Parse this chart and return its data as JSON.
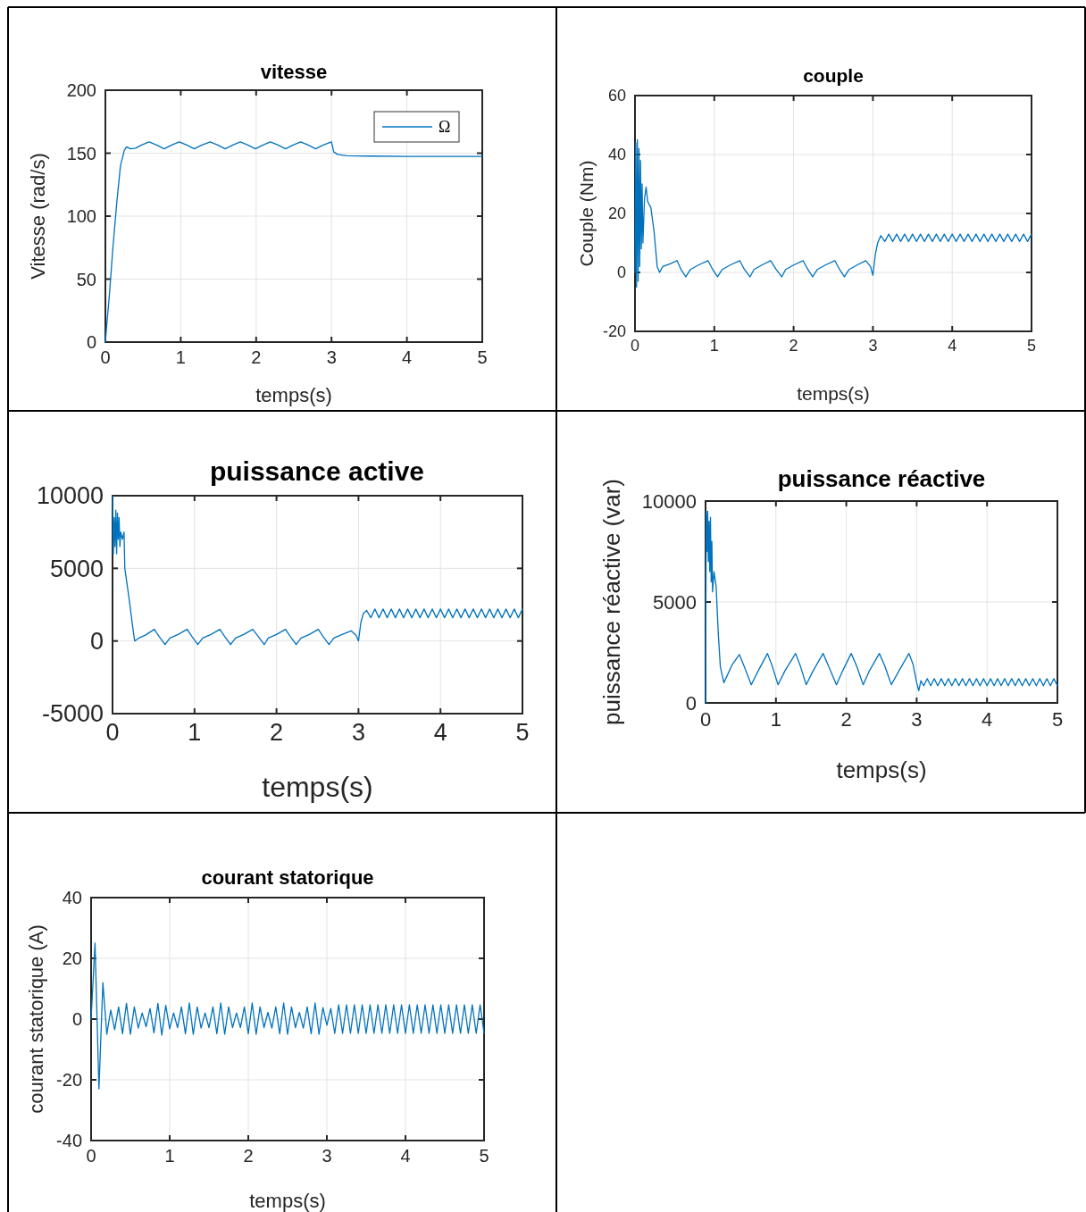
{
  "chart_data": [
    {
      "type": "line",
      "title": "vitesse",
      "xlabel": "temps(s)",
      "ylabel": "Vitesse (rad/s)",
      "xlim": [
        0,
        5
      ],
      "xticks": [
        0,
        1,
        2,
        3,
        4,
        5
      ],
      "ylim": [
        0,
        200
      ],
      "yticks": [
        0,
        50,
        100,
        150,
        200
      ],
      "grid": true,
      "legend": "top right",
      "series": [
        {
          "name": "Ω",
          "color": "#0072bd",
          "x": [
            0,
            0.02,
            0.05,
            0.1,
            0.15,
            0.2,
            0.25,
            0.28,
            0.33,
            0.4,
            0.48,
            0.58,
            0.68,
            0.78,
            0.88,
            0.98,
            1.08,
            1.18,
            1.28,
            1.39,
            1.49,
            1.59,
            1.69,
            1.79,
            1.89,
            1.99,
            2.09,
            2.19,
            2.29,
            2.39,
            2.49,
            2.59,
            2.69,
            2.79,
            2.89,
            3.0,
            3.03,
            3.08,
            3.2,
            3.5,
            4,
            4.5,
            5
          ],
          "values": [
            0,
            15,
            35,
            75,
            110,
            140,
            152,
            155,
            153.5,
            154,
            156.5,
            159,
            156.5,
            153.5,
            156.5,
            159,
            156.5,
            153.5,
            156.5,
            159,
            156.5,
            153.5,
            156.5,
            159,
            156.5,
            153.5,
            156.5,
            159,
            156.5,
            153.5,
            156.5,
            159,
            156.5,
            153.5,
            156.5,
            159,
            151,
            149,
            148,
            147.7,
            147.5,
            147.5,
            147.5
          ]
        }
      ]
    },
    {
      "type": "line",
      "title": "couple",
      "xlabel": "temps(s)",
      "ylabel": "Couple (Nm)",
      "xlim": [
        0,
        5
      ],
      "xticks": [
        0,
        1,
        2,
        3,
        4,
        5
      ],
      "ylim": [
        -20,
        60
      ],
      "yticks": [
        -20,
        0,
        20,
        40,
        60
      ],
      "grid": true,
      "series": [
        {
          "color": "#0072bd",
          "x": [
            0,
            0.01,
            0.02,
            0.03,
            0.04,
            0.05,
            0.06,
            0.07,
            0.08,
            0.09,
            0.1,
            0.12,
            0.14,
            0.16,
            0.2,
            0.24,
            0.28,
            0.31,
            0.35,
            0.45,
            0.53,
            0.58,
            0.64,
            0.7,
            0.8,
            0.92,
            0.98,
            1.04,
            1.1,
            1.2,
            1.32,
            1.38,
            1.45,
            1.5,
            1.6,
            1.71,
            1.78,
            1.85,
            1.9,
            2.0,
            2.12,
            2.18,
            2.24,
            2.3,
            2.4,
            2.52,
            2.58,
            2.64,
            2.7,
            2.8,
            2.91,
            2.97,
            3.0,
            3.03,
            3.06,
            3.1,
            3.15,
            3.2,
            3.25,
            3.3,
            3.35,
            3.4,
            3.45,
            3.5,
            3.55,
            3.6,
            3.65,
            3.7,
            3.75,
            3.8,
            3.85,
            3.9,
            3.95,
            4.0,
            4.05,
            4.1,
            4.15,
            4.2,
            4.25,
            4.3,
            4.35,
            4.4,
            4.45,
            4.5,
            4.55,
            4.6,
            4.65,
            4.7,
            4.75,
            4.8,
            4.85,
            4.9,
            4.95,
            5.0
          ],
          "values": [
            0,
            44,
            -5,
            45,
            -3,
            42,
            2,
            38,
            8,
            30,
            10,
            25,
            29,
            24,
            22,
            14,
            2,
            0,
            2,
            3,
            4,
            1,
            -1.5,
            1,
            2.5,
            4,
            1,
            -1.5,
            1,
            2.5,
            4,
            1,
            -1.5,
            1,
            2.5,
            4,
            1,
            -1.5,
            1,
            2.5,
            4,
            1,
            -1.5,
            1,
            2.5,
            4,
            1,
            -1.5,
            1,
            2.5,
            4,
            2,
            -1,
            6,
            10,
            12.5,
            10.5,
            13,
            10.5,
            13,
            10.5,
            13,
            10.5,
            13,
            10.5,
            13,
            10.5,
            13,
            10.5,
            13,
            10.5,
            13,
            10.5,
            13,
            10.5,
            13,
            10.5,
            13,
            10.5,
            13,
            10.5,
            13,
            10.5,
            13,
            10.5,
            13,
            10.5,
            13,
            10.5,
            13,
            10.5,
            13,
            10.5,
            13
          ]
        }
      ]
    },
    {
      "type": "line",
      "title": "puissance active",
      "xlabel": "temps(s)",
      "xlim": [
        0,
        5
      ],
      "xticks": [
        0,
        1,
        2,
        3,
        4,
        5
      ],
      "ylim": [
        -5000,
        10000
      ],
      "yticks": [
        -5000,
        0,
        5000,
        10000
      ],
      "grid": true,
      "series": [
        {
          "color": "#0072bd",
          "x": [
            0,
            0.01,
            0.02,
            0.03,
            0.04,
            0.05,
            0.06,
            0.07,
            0.08,
            0.09,
            0.1,
            0.12,
            0.14,
            0.15,
            0.2,
            0.25,
            0.27,
            0.32,
            0.4,
            0.51,
            0.57,
            0.64,
            0.7,
            0.8,
            0.91,
            0.97,
            1.04,
            1.1,
            1.2,
            1.31,
            1.37,
            1.44,
            1.5,
            1.6,
            1.71,
            1.78,
            1.85,
            1.9,
            2.0,
            2.11,
            2.17,
            2.24,
            2.3,
            2.4,
            2.51,
            2.57,
            2.64,
            2.7,
            2.8,
            2.91,
            2.97,
            3.0,
            3.03,
            3.06,
            3.1,
            3.15,
            3.2,
            3.25,
            3.3,
            3.35,
            3.4,
            3.45,
            3.5,
            3.55,
            3.6,
            3.65,
            3.7,
            3.75,
            3.8,
            3.85,
            3.9,
            3.95,
            4.0,
            4.05,
            4.1,
            4.15,
            4.2,
            4.25,
            4.3,
            4.35,
            4.4,
            4.45,
            4.5,
            4.55,
            4.6,
            4.65,
            4.7,
            4.75,
            4.8,
            4.85,
            4.9,
            4.95,
            5.0
          ],
          "values": [
            10000,
            6000,
            8500,
            6500,
            9000,
            6000,
            8800,
            7000,
            8500,
            6500,
            7500,
            7000,
            7500,
            5000,
            3000,
            800,
            0,
            200,
            400,
            800,
            300,
            -250,
            200,
            450,
            800,
            300,
            -250,
            200,
            450,
            800,
            300,
            -250,
            200,
            450,
            800,
            300,
            -250,
            200,
            450,
            800,
            300,
            -250,
            200,
            450,
            800,
            300,
            -250,
            200,
            450,
            700,
            400,
            0,
            1300,
            1900,
            2100,
            1600,
            2200,
            1600,
            2200,
            1600,
            2200,
            1600,
            2200,
            1600,
            2200,
            1600,
            2200,
            1600,
            2200,
            1600,
            2200,
            1600,
            2200,
            1600,
            2200,
            1600,
            2200,
            1600,
            2200,
            1600,
            2200,
            1600,
            2200,
            1600,
            2200,
            1600,
            2200,
            1600,
            2200,
            1600,
            2200,
            1600,
            2200
          ]
        }
      ]
    },
    {
      "type": "line",
      "title": "puissance réactive",
      "xlabel": "temps(s)",
      "ylabel": "puissance réactive (var)",
      "xlim": [
        0,
        5
      ],
      "xticks": [
        0,
        1,
        2,
        3,
        4,
        5
      ],
      "ylim": [
        0,
        10000
      ],
      "yticks": [
        0,
        5000,
        10000
      ],
      "grid": true,
      "series": [
        {
          "color": "#0072bd",
          "x": [
            0,
            0.01,
            0.02,
            0.03,
            0.04,
            0.05,
            0.06,
            0.07,
            0.08,
            0.09,
            0.1,
            0.12,
            0.15,
            0.18,
            0.21,
            0.26,
            0.3,
            0.38,
            0.48,
            0.55,
            0.65,
            0.75,
            0.88,
            0.95,
            1.03,
            1.13,
            1.28,
            1.35,
            1.43,
            1.53,
            1.67,
            1.75,
            1.86,
            1.95,
            2.07,
            2.15,
            2.24,
            2.33,
            2.47,
            2.55,
            2.64,
            2.75,
            2.89,
            2.95,
            3.0,
            3.03,
            3.06,
            3.1,
            3.15,
            3.2,
            3.25,
            3.3,
            3.35,
            3.4,
            3.45,
            3.5,
            3.55,
            3.6,
            3.65,
            3.7,
            3.75,
            3.8,
            3.85,
            3.9,
            3.95,
            4.0,
            4.05,
            4.1,
            4.15,
            4.2,
            4.25,
            4.3,
            4.35,
            4.4,
            4.45,
            4.5,
            4.55,
            4.6,
            4.65,
            4.7,
            4.75,
            4.8,
            4.85,
            4.9,
            4.95,
            5.0
          ],
          "values": [
            0,
            9500,
            7500,
            9500,
            7000,
            9000,
            6500,
            9200,
            6000,
            8000,
            5500,
            6500,
            5800,
            3500,
            1800,
            1000,
            1300,
            1900,
            2400,
            1800,
            900,
            1600,
            2450,
            1800,
            900,
            1600,
            2450,
            1800,
            900,
            1600,
            2450,
            1800,
            900,
            1600,
            2450,
            1800,
            900,
            1600,
            2450,
            1800,
            900,
            1600,
            2450,
            1900,
            1000,
            600,
            1100,
            850,
            1200,
            850,
            1200,
            850,
            1200,
            850,
            1200,
            850,
            1200,
            850,
            1200,
            850,
            1200,
            850,
            1200,
            850,
            1200,
            850,
            1200,
            850,
            1200,
            850,
            1200,
            850,
            1200,
            850,
            1200,
            850,
            1200,
            850,
            1200,
            850,
            1200,
            850,
            1200,
            850,
            1200,
            850
          ]
        }
      ]
    },
    {
      "type": "line",
      "title": "courant statorique",
      "xlabel": "temps(s)",
      "ylabel": "courant statorique (A)",
      "xlim": [
        0,
        5
      ],
      "xticks": [
        0,
        1,
        2,
        3,
        4,
        5
      ],
      "ylim": [
        -40,
        40
      ],
      "yticks": [
        -40,
        -20,
        0,
        20,
        40
      ],
      "grid": true,
      "series": [
        {
          "color": "#0072bd",
          "x": [
            0,
            0.05,
            0.1,
            0.15,
            0.2,
            0.25,
            0.3,
            0.35,
            0.4,
            0.45,
            0.5,
            0.55,
            0.6,
            0.65,
            0.7,
            0.75,
            0.8,
            0.85,
            0.9,
            0.95,
            1.0,
            1.05,
            1.1,
            1.15,
            1.2,
            1.25,
            1.3,
            1.35,
            1.4,
            1.45,
            1.5,
            1.55,
            1.6,
            1.65,
            1.7,
            1.75,
            1.8,
            1.85,
            1.9,
            1.95,
            2.0,
            2.05,
            2.1,
            2.15,
            2.2,
            2.25,
            2.3,
            2.35,
            2.4,
            2.45,
            2.5,
            2.55,
            2.6,
            2.65,
            2.7,
            2.75,
            2.8,
            2.85,
            2.9,
            2.95,
            3.0,
            3.05,
            3.1,
            3.15,
            3.2,
            3.25,
            3.3,
            3.35,
            3.4,
            3.45,
            3.5,
            3.55,
            3.6,
            3.65,
            3.7,
            3.75,
            3.8,
            3.85,
            3.9,
            3.95,
            4.0,
            4.05,
            4.1,
            4.15,
            4.2,
            4.25,
            4.3,
            4.35,
            4.4,
            4.45,
            4.5,
            4.55,
            4.6,
            4.65,
            4.7,
            4.75,
            4.8,
            4.85,
            4.9,
            4.95,
            5.0
          ],
          "values": [
            0,
            25,
            -23,
            12,
            -5,
            3,
            -3.5,
            4,
            -4.8,
            5.2,
            -5,
            4,
            -3,
            2,
            -2.5,
            3.5,
            -4.5,
            5.2,
            -5.3,
            4.5,
            -3.2,
            2,
            -2.8,
            4,
            -4.8,
            5.3,
            -5,
            4,
            -3,
            2,
            -2.8,
            4,
            -4.8,
            5.3,
            -5,
            4,
            -2.8,
            2,
            -2.8,
            4,
            -4.8,
            5.3,
            -5,
            4,
            -2.8,
            2.2,
            -3,
            4,
            -4.8,
            5.3,
            -5,
            4,
            -2.8,
            2.2,
            -3,
            4,
            -4.8,
            5.3,
            -5,
            3.8,
            -2,
            3.5,
            -4.7,
            4.7,
            -4.7,
            4.7,
            -4.7,
            4.7,
            -4.7,
            4.7,
            -4.7,
            4.7,
            -4.7,
            4.7,
            -4.7,
            4.7,
            -4.7,
            4.7,
            -4.7,
            4.7,
            -4.7,
            4.7,
            -4.7,
            4.7,
            -4.7,
            4.7,
            -4.7,
            4.7,
            -4.7,
            4.7,
            -4.7,
            4.7,
            -4.7,
            4.7,
            -4.7,
            4.7,
            -4.7,
            4.7,
            -4.7,
            4.7,
            -4.7
          ]
        }
      ]
    }
  ]
}
